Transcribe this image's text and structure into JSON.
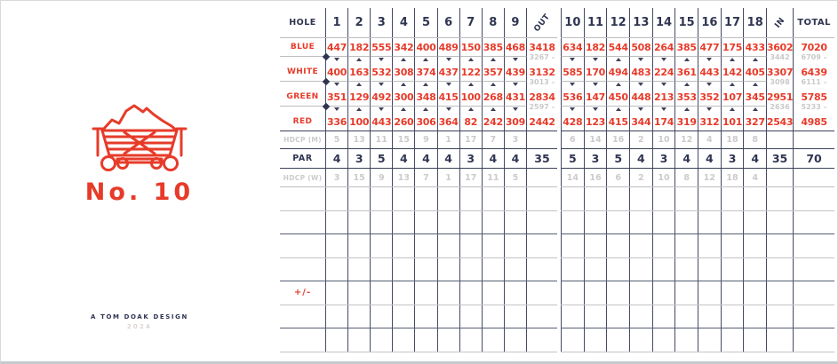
{
  "brand": {
    "logo_title": "No. 10",
    "footer_line1": "A TOM DOAK DESIGN",
    "footer_line2": "2024"
  },
  "colors": {
    "accent_red": "#e73b2a",
    "navy": "#2f3551",
    "muted_gray": "#c9c9c9",
    "grid_gray": "#bdbdbd",
    "grid_navy": "#454c63"
  },
  "icons": {
    "logo": "minecart-icon",
    "tee_marker_down": "triangle-down",
    "tee_marker_up": "triangle-up",
    "tee_split_marker": "diamond"
  },
  "scorecard": {
    "front": {
      "hole_header": "HOLE",
      "holes": [
        "1",
        "2",
        "3",
        "4",
        "5",
        "6",
        "7",
        "8",
        "9"
      ],
      "sum_header": "OUT",
      "tees": [
        {
          "name": "BLUE",
          "values": [
            "447",
            "182",
            "555",
            "342",
            "400",
            "489",
            "150",
            "385",
            "468"
          ],
          "out": "3418"
        },
        {
          "name": "WHITE",
          "values": [
            "400",
            "163",
            "532",
            "308",
            "374",
            "437",
            "122",
            "357",
            "439"
          ],
          "out": "3132"
        },
        {
          "name": "GREEN",
          "values": [
            "351",
            "129",
            "492",
            "300",
            "348",
            "415",
            "100",
            "268",
            "431"
          ],
          "out": "2834"
        },
        {
          "name": "RED",
          "values": [
            "336",
            "100",
            "443",
            "260",
            "306",
            "364",
            "82",
            "242",
            "309"
          ],
          "out": "2442"
        }
      ],
      "combo_rows": [
        {
          "out": "3267 –",
          "marks": [
            "d",
            "u",
            "d",
            "u",
            "u",
            "d",
            "u",
            "u",
            "d"
          ]
        },
        {
          "out": "3013 –",
          "marks": [
            "d",
            "u",
            "d",
            "u",
            "u",
            "d",
            "u",
            "u",
            "d"
          ]
        },
        {
          "out": "2597 –",
          "marks": [
            "d",
            "u",
            "d",
            "u",
            "u",
            "d",
            "u",
            "u",
            "d"
          ]
        }
      ],
      "hdcp_m": {
        "label": "HDCP (M)",
        "values": [
          "5",
          "13",
          "11",
          "15",
          "9",
          "1",
          "17",
          "7",
          "3"
        ],
        "out": ""
      },
      "par": {
        "label": "PAR",
        "values": [
          "4",
          "3",
          "5",
          "4",
          "4",
          "4",
          "3",
          "4",
          "4"
        ],
        "out": "35"
      },
      "hdcp_w": {
        "label": "HDCP (W)",
        "values": [
          "3",
          "15",
          "9",
          "13",
          "7",
          "1",
          "17",
          "11",
          "5"
        ],
        "out": ""
      },
      "plus_minus_label": "+/-",
      "blank_rows": 7,
      "plus_minus_row_index": 4
    },
    "back": {
      "holes": [
        "10",
        "11",
        "12",
        "13",
        "14",
        "15",
        "16",
        "17",
        "18"
      ],
      "sum_header": "IN",
      "total_header": "TOTAL",
      "tees": [
        {
          "name": "BLUE",
          "values": [
            "634",
            "182",
            "544",
            "508",
            "264",
            "385",
            "477",
            "175",
            "433"
          ],
          "in": "3602",
          "total": "7020"
        },
        {
          "name": "WHITE",
          "values": [
            "585",
            "170",
            "494",
            "483",
            "224",
            "361",
            "443",
            "142",
            "405"
          ],
          "in": "3307",
          "total": "6439"
        },
        {
          "name": "GREEN",
          "values": [
            "536",
            "147",
            "450",
            "448",
            "213",
            "353",
            "352",
            "107",
            "345"
          ],
          "in": "2951",
          "total": "5785"
        },
        {
          "name": "RED",
          "values": [
            "428",
            "123",
            "415",
            "344",
            "174",
            "319",
            "312",
            "101",
            "327"
          ],
          "in": "2543",
          "total": "4985"
        }
      ],
      "combo_rows": [
        {
          "in": "3442",
          "total": "6709 –",
          "marks": [
            "d",
            "d",
            "u",
            "d",
            "d",
            "u",
            "d",
            "u",
            "u"
          ]
        },
        {
          "in": "3098",
          "total": "6111 –",
          "marks": [
            "d",
            "d",
            "u",
            "d",
            "d",
            "u",
            "d",
            "u",
            "u"
          ]
        },
        {
          "in": "2636",
          "total": "5233 –",
          "marks": [
            "d",
            "d",
            "u",
            "d",
            "d",
            "u",
            "d",
            "u",
            "u"
          ]
        }
      ],
      "hdcp_m": {
        "values": [
          "6",
          "14",
          "16",
          "2",
          "10",
          "12",
          "4",
          "18",
          "8"
        ],
        "in": "",
        "total": ""
      },
      "par": {
        "values": [
          "5",
          "3",
          "5",
          "4",
          "3",
          "4",
          "4",
          "3",
          "4"
        ],
        "in": "35",
        "total": "70"
      },
      "hdcp_w": {
        "values": [
          "14",
          "16",
          "6",
          "2",
          "10",
          "8",
          "12",
          "18",
          "4"
        ],
        "in": "",
        "total": ""
      },
      "blank_rows": 7
    }
  }
}
